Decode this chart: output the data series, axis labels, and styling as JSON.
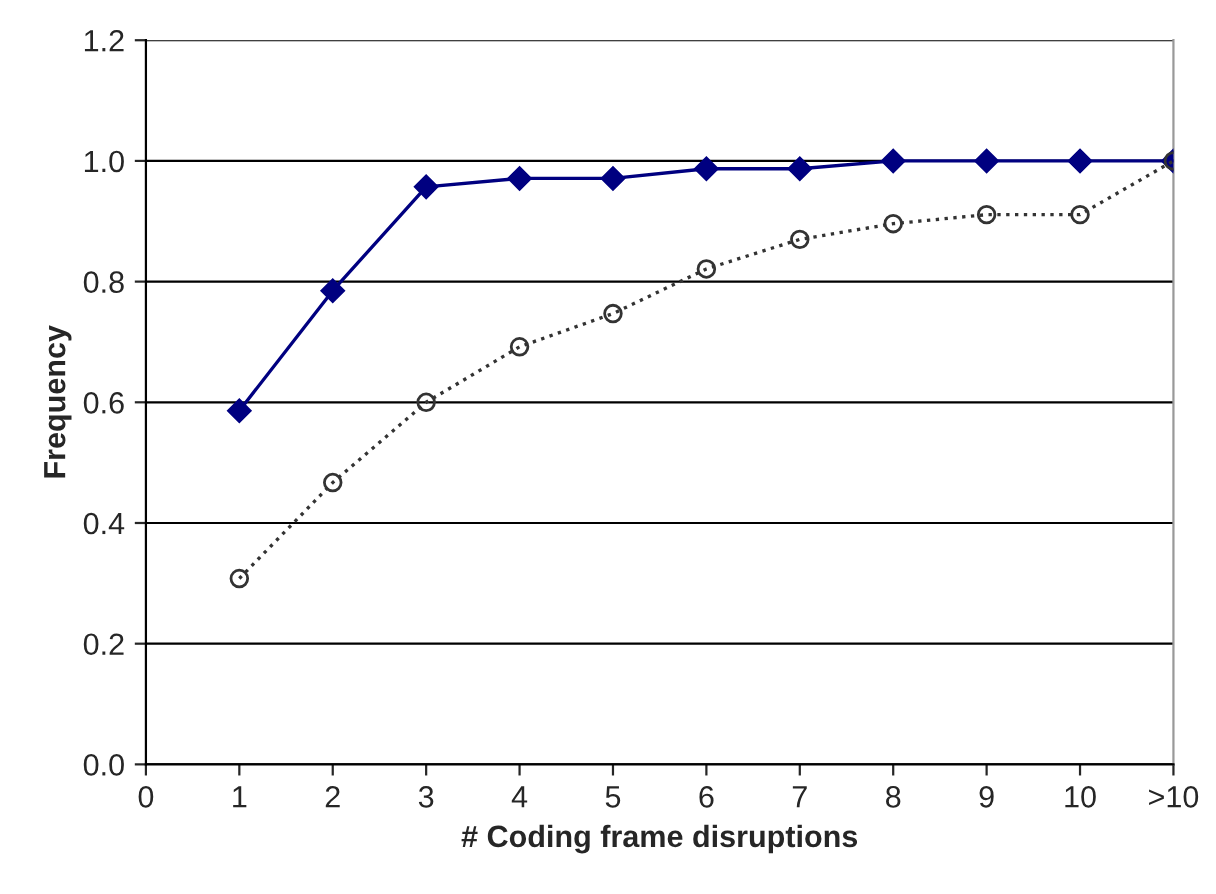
{
  "chart_data": {
    "type": "line",
    "xlabel": "# Coding frame disruptions",
    "ylabel": "Frequency",
    "x": [
      1,
      2,
      3,
      4,
      5,
      6,
      7,
      8,
      9,
      10,
      11
    ],
    "series": [
      {
        "color": "#000080",
        "marker": "diamond",
        "line_style": "solid",
        "values": [
          0.586,
          0.785,
          0.957,
          0.971,
          0.971,
          0.987,
          0.987,
          1.0,
          1.0,
          1.0,
          1.0
        ]
      },
      {
        "color": "#333333",
        "marker": "circle",
        "line_style": "dotted",
        "values": [
          0.308,
          0.467,
          0.6,
          0.692,
          0.747,
          0.821,
          0.87,
          0.896,
          0.911,
          0.911,
          1.0
        ]
      }
    ],
    "xlim": [
      0,
      11
    ],
    "xticks": [
      0,
      1,
      2,
      3,
      4,
      5,
      6,
      7,
      8,
      9,
      10,
      {
        "value": 11,
        "label": ">10"
      }
    ],
    "ylim": [
      0,
      1.2
    ],
    "yticks": [
      {
        "value": 0,
        "label": "0.0"
      },
      {
        "value": 0.2,
        "label": "0.2"
      },
      {
        "value": 0.4,
        "label": "0.4"
      },
      {
        "value": 0.6,
        "label": "0.6"
      },
      {
        "value": 0.8,
        "label": "0.8"
      },
      {
        "value": 1.0,
        "label": "1.0"
      },
      {
        "value": 1.2,
        "label": "1.2"
      }
    ],
    "grid": "y",
    "legend": false
  }
}
